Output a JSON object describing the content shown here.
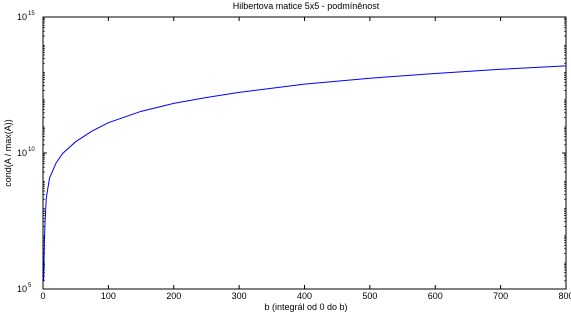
{
  "chart_data": {
    "type": "line",
    "title": "Hilbertova matice 5x5 - podmíněnost",
    "xlabel": "b (integrál od 0 do b)",
    "ylabel": "cond(A / max(A))",
    "xlim": [
      0,
      800
    ],
    "ylim": [
      100000,
      1000000000000000
    ],
    "yscale": "log",
    "grid": false,
    "legend": "none",
    "x_ticks": [
      0,
      100,
      200,
      300,
      400,
      500,
      600,
      700,
      800
    ],
    "x_tick_labels": [
      "0",
      "100",
      "200",
      "300",
      "400",
      "500",
      "600",
      "700",
      "800"
    ],
    "y_ticks": [
      {
        "value": 100000,
        "base": "10",
        "exp": "5"
      },
      {
        "value": 10000000000,
        "base": "10",
        "exp": "10"
      },
      {
        "value": 1000000000000000,
        "base": "10",
        "exp": "15"
      }
    ],
    "series": [
      {
        "color": "#0000ff",
        "x": [
          1,
          2,
          3,
          5,
          10,
          20,
          30,
          50,
          75,
          100,
          150,
          200,
          250,
          300,
          400,
          500,
          600,
          700,
          800
        ],
        "y": [
          200000.0,
          4000000.0,
          24000000.0,
          220000000.0,
          1200000000.0,
          4300000000.0,
          9600000000.0,
          26000000000.0,
          64000000000.0,
          130000000000.0,
          340000000000.0,
          670000000000.0,
          1100000000000.0,
          1700000000000.0,
          3400000000000.0,
          5600000000000.0,
          8400000000000.0,
          12000000000000.0,
          16000000000000.0
        ]
      }
    ]
  }
}
